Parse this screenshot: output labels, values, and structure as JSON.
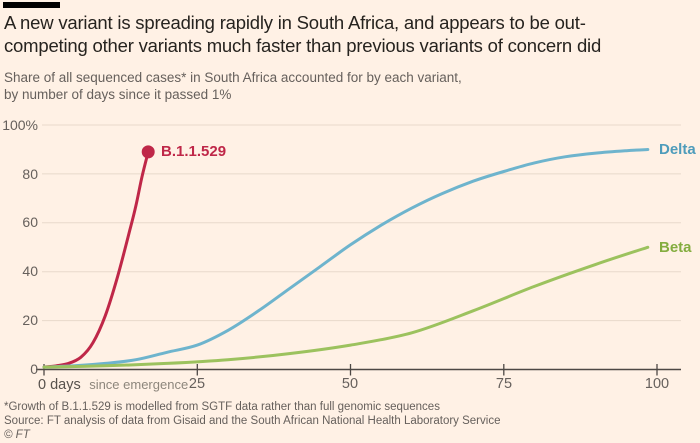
{
  "colors": {
    "background": "#fff1e5",
    "title_text": "#26231f",
    "muted_text": "#66605c",
    "axis": "#4d4845",
    "gridline": "#e8d9cb",
    "topbar": "#000000",
    "b11529": "#bf2748",
    "delta": "#6eb4cd",
    "beta": "#9cc25e"
  },
  "header": {
    "title_line1": "A new variant is spreading rapidly in South Africa, and appears to be out-",
    "title_line2": "competing other variants much faster than previous variants of concern did",
    "subtitle_line1": "Share of all sequenced cases* in South Africa accounted for by each variant,",
    "subtitle_line2": "by number of days since it passed 1%"
  },
  "axes": {
    "y_labels": [
      "100%",
      "80",
      "60",
      "40",
      "20",
      "0"
    ],
    "x_zero_label": "0 days",
    "x_zero_note": "since emergence",
    "x_labels": [
      "25",
      "50",
      "75",
      "100"
    ]
  },
  "chart_data": {
    "type": "line",
    "title": "A new variant is spreading rapidly in South Africa, and appears to be out-competing other variants much faster than previous variants of concern did",
    "subtitle": "Share of all sequenced cases* in South Africa accounted for by each variant, by number of days since it passed 1%",
    "xlabel": "days since emergence",
    "ylabel": "Share of sequenced cases (%)",
    "xlim": [
      0,
      100
    ],
    "ylim": [
      0,
      100
    ],
    "x_ticks": [
      0,
      25,
      50,
      75,
      100
    ],
    "y_ticks": [
      0,
      20,
      40,
      60,
      80,
      100
    ],
    "grid": "horizontal",
    "legend": "inline-end-labels",
    "series": [
      {
        "name": "B.1.1.529",
        "color": "#bf2748",
        "end_dot": true,
        "points": [
          [
            0,
            1
          ],
          [
            2,
            1.5
          ],
          [
            4,
            2.5
          ],
          [
            6,
            5
          ],
          [
            8,
            11
          ],
          [
            10,
            22
          ],
          [
            12,
            38
          ],
          [
            14,
            57
          ],
          [
            15,
            67
          ],
          [
            16,
            79
          ],
          [
            17,
            89
          ]
        ]
      },
      {
        "name": "Delta",
        "color": "#6eb4cd",
        "end_dot": false,
        "points": [
          [
            0,
            1
          ],
          [
            5,
            1.5
          ],
          [
            10,
            2.5
          ],
          [
            15,
            4
          ],
          [
            20,
            7
          ],
          [
            25,
            10
          ],
          [
            30,
            16
          ],
          [
            35,
            24
          ],
          [
            40,
            33
          ],
          [
            45,
            42
          ],
          [
            50,
            51
          ],
          [
            55,
            59
          ],
          [
            60,
            66
          ],
          [
            65,
            72
          ],
          [
            70,
            77
          ],
          [
            75,
            81
          ],
          [
            80,
            84.5
          ],
          [
            85,
            87
          ],
          [
            90,
            88.5
          ],
          [
            95,
            89.5
          ],
          [
            98.5,
            90
          ]
        ]
      },
      {
        "name": "Beta",
        "color": "#9cc25e",
        "end_dot": false,
        "points": [
          [
            0,
            1
          ],
          [
            10,
            1.5
          ],
          [
            20,
            2.5
          ],
          [
            30,
            4
          ],
          [
            40,
            6.5
          ],
          [
            50,
            10
          ],
          [
            60,
            15
          ],
          [
            70,
            24
          ],
          [
            80,
            34
          ],
          [
            90,
            43
          ],
          [
            98.5,
            50
          ]
        ]
      }
    ]
  },
  "footer": {
    "footnote": "*Growth of B.1.1.529 is modelled from SGTF data rather than full genomic sequences",
    "source": "Source: FT analysis of data from Gisaid and the South African National Health Laboratory Service",
    "copyright": "© FT"
  }
}
